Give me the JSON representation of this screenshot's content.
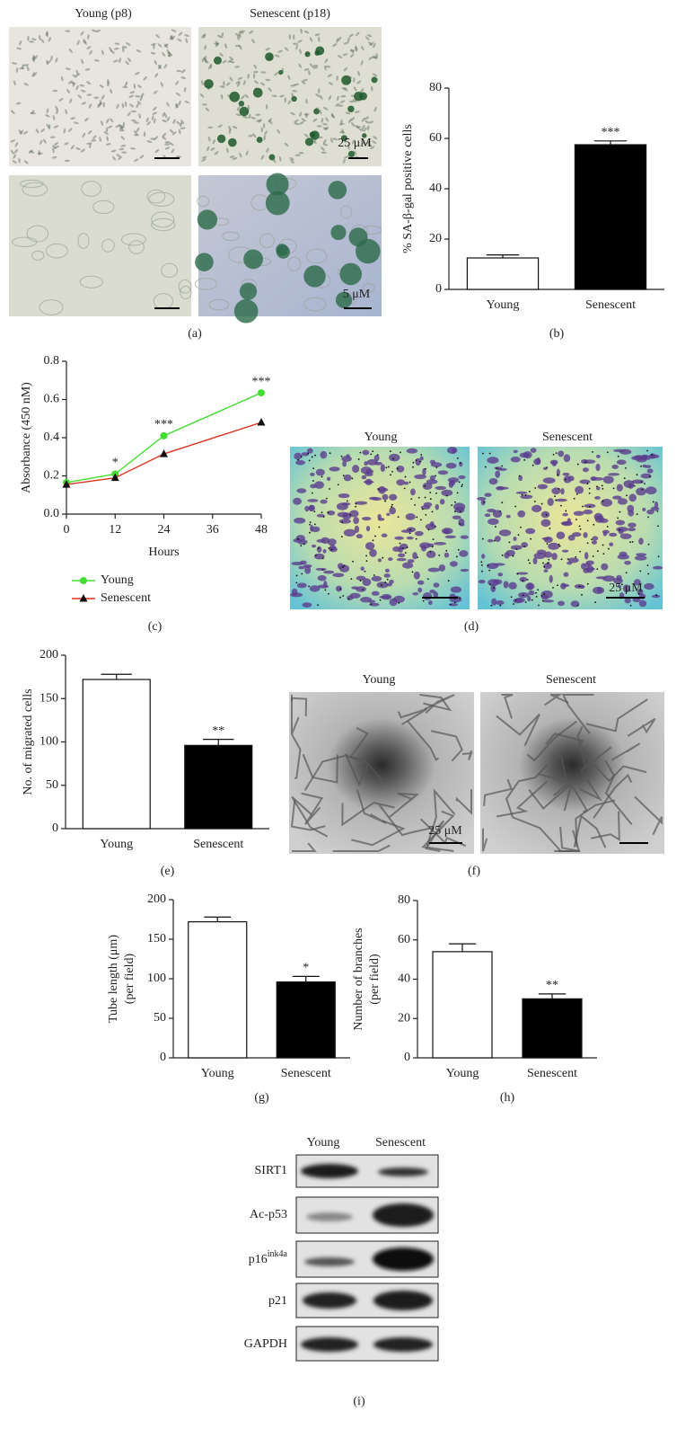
{
  "figure": {
    "a": {
      "col_labels": [
        "Young (p8)",
        "Senescent (p18)"
      ],
      "scale_top": "25 μM",
      "scale_bottom": "5 μM",
      "panel": "(a)"
    },
    "d": {
      "col_labels": [
        "Young",
        "Senescent"
      ],
      "scale": "25 μM",
      "panel": "(d)"
    },
    "f": {
      "col_labels": [
        "Young",
        "Senescent"
      ],
      "scale": "25 μM",
      "panel": "(f)"
    },
    "i": {
      "col_labels": [
        "Young",
        "Senescent"
      ],
      "rows": [
        {
          "label": "SIRT1"
        },
        {
          "label": "Ac-p53"
        },
        {
          "label": "p16",
          "sup": "ink4a"
        },
        {
          "label": "p21"
        },
        {
          "label": "GAPDH"
        }
      ],
      "panel": "(i)"
    }
  },
  "chart_data": [
    {
      "type": "bar",
      "panel": "(b)",
      "ylabel": "% SA-β-gal positive cells",
      "categories": [
        "Young",
        "Senescent"
      ],
      "values": [
        12.5,
        57.5
      ],
      "errors": [
        1.2,
        1.5
      ],
      "colors": [
        "#ffffff",
        "#000000"
      ],
      "significance": [
        null,
        "***"
      ],
      "ylim": [
        0,
        80
      ],
      "yticks": [
        0,
        20,
        40,
        60,
        80
      ]
    },
    {
      "type": "line",
      "panel": "(c)",
      "xlabel": "Hours",
      "ylabel": "Absorbance (450 nM)",
      "x": [
        0,
        12,
        24,
        48
      ],
      "series": [
        {
          "name": "Young",
          "color": "#44dd33",
          "marker": "circle",
          "values": [
            0.165,
            0.21,
            0.41,
            0.635
          ]
        },
        {
          "name": "Senescent",
          "color": "#dd3322",
          "marker": "triangle",
          "values": [
            0.155,
            0.19,
            0.315,
            0.48
          ]
        }
      ],
      "significance": [
        null,
        "*",
        "***",
        "***"
      ],
      "xlim": [
        0,
        48
      ],
      "xticks": [
        0,
        12,
        24,
        36,
        48
      ],
      "ylim": [
        0,
        0.8
      ],
      "yticks": [
        {
          "value": 0,
          "label": "0.0"
        },
        0.2,
        0.4,
        0.6,
        0.8
      ]
    },
    {
      "type": "bar",
      "panel": "(e)",
      "ylabel": "No. of migrated cells",
      "categories": [
        "Young",
        "Senescent"
      ],
      "values": [
        172,
        96
      ],
      "errors": [
        6,
        7
      ],
      "colors": [
        "#ffffff",
        "#000000"
      ],
      "significance": [
        null,
        "**"
      ],
      "ylim": [
        0,
        200
      ],
      "yticks": [
        0,
        50,
        100,
        150,
        200
      ]
    },
    {
      "type": "bar",
      "panel": "(g)",
      "ylabel": [
        "Tube length (μm)",
        "(per field)"
      ],
      "categories": [
        "Young",
        "Senescent"
      ],
      "values": [
        172,
        96
      ],
      "errors": [
        6,
        7
      ],
      "colors": [
        "#ffffff",
        "#000000"
      ],
      "significance": [
        null,
        "*"
      ],
      "ylim": [
        0,
        200
      ],
      "yticks": [
        0,
        50,
        100,
        150,
        200
      ]
    },
    {
      "type": "bar",
      "panel": "(h)",
      "ylabel": [
        "Number of branches",
        "(per field)"
      ],
      "categories": [
        "Young",
        "Senescent"
      ],
      "values": [
        54,
        30
      ],
      "errors": [
        4,
        2.5
      ],
      "colors": [
        "#ffffff",
        "#000000"
      ],
      "significance": [
        null,
        "**"
      ],
      "ylim": [
        0,
        80
      ],
      "yticks": [
        0,
        20,
        40,
        60,
        80
      ]
    }
  ]
}
